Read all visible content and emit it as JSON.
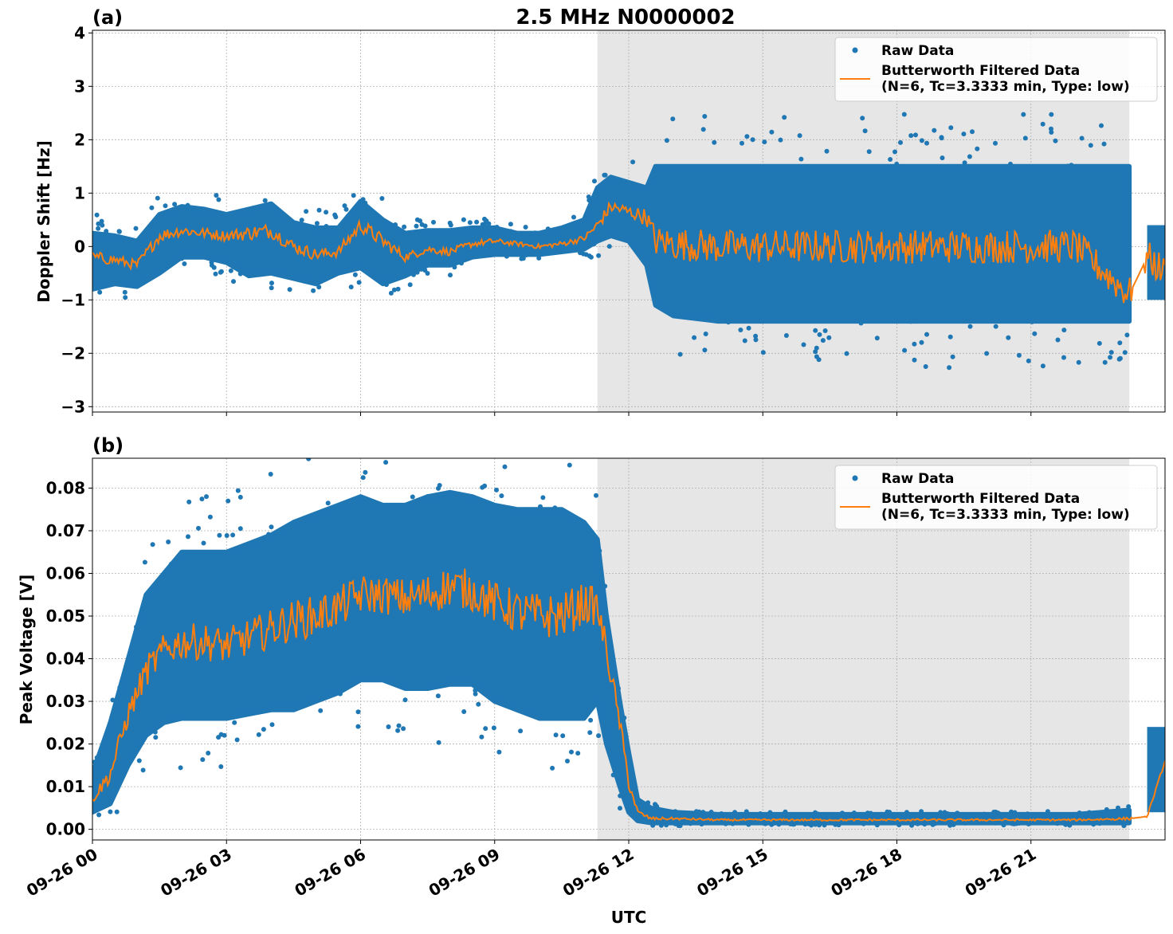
{
  "figure": {
    "title": "2.5 MHz N0000002",
    "xlabel": "UTC",
    "colors": {
      "raw": "#1f77b4",
      "filtered": "#ff7f0e",
      "shade": "#e6e6e6",
      "grid": "#b0b0b0"
    }
  },
  "chart_data": [
    {
      "type": "scatter",
      "panel_label": "(a)",
      "ylabel": "Doppler Shift [Hz]",
      "xlim_hours": [
        0,
        24
      ],
      "ylim": [
        -3.1,
        4.05
      ],
      "yticks": [
        -3,
        -2,
        -1,
        0,
        1,
        2,
        3,
        4
      ],
      "ytick_labels": [
        "−3",
        "−2",
        "−1",
        "0",
        "1",
        "2",
        "3",
        "4"
      ],
      "xticks_hours": [
        0,
        3,
        6,
        9,
        12,
        15,
        18,
        21
      ],
      "xtick_labels": [
        "09-26 00",
        "09-26 03",
        "09-26 06",
        "09-26 09",
        "09-26 12",
        "09-26 15",
        "09-26 18",
        "09-26 21"
      ],
      "shaded_region_hours": [
        11.3,
        23.2
      ],
      "grid": true,
      "legend": {
        "placement": "top-right",
        "entries": [
          {
            "label": "Raw Data",
            "marker": "dot"
          },
          {
            "label": "Butterworth Filtered Data\n(N=6, Tc=3.3333 min, Type: low)",
            "marker": "line"
          }
        ]
      },
      "series": [
        {
          "name": "Raw Data",
          "style": "band",
          "x": [
            0,
            0.5,
            1,
            1.5,
            2,
            2.5,
            3,
            3.5,
            4,
            4.5,
            5,
            5.5,
            6,
            6.5,
            7,
            7.5,
            8,
            8.5,
            9,
            9.5,
            10,
            10.5,
            11,
            11.3,
            11.6,
            12,
            12.4,
            12.6,
            13,
            14,
            15,
            16,
            17,
            18,
            19,
            20,
            21,
            22,
            23.2
          ],
          "upper": [
            0.25,
            0.2,
            0.1,
            0.6,
            0.75,
            0.7,
            0.6,
            0.7,
            0.8,
            0.45,
            0.35,
            0.35,
            0.85,
            0.5,
            0.25,
            0.3,
            0.3,
            0.35,
            0.35,
            0.25,
            0.25,
            0.35,
            0.5,
            1.1,
            1.3,
            1.2,
            1.1,
            1.5,
            1.5,
            1.5,
            1.5,
            1.5,
            1.5,
            1.5,
            1.5,
            1.5,
            1.5,
            1.5,
            1.5
          ],
          "lower": [
            -0.8,
            -0.7,
            -0.75,
            -0.5,
            -0.2,
            -0.2,
            -0.3,
            -0.55,
            -0.5,
            -0.6,
            -0.7,
            -0.5,
            -0.4,
            -0.7,
            -0.55,
            -0.35,
            -0.35,
            -0.2,
            -0.15,
            -0.15,
            -0.15,
            -0.1,
            -0.05,
            0.1,
            0.2,
            0.1,
            -0.35,
            -1.1,
            -1.3,
            -1.4,
            -1.4,
            -1.4,
            -1.4,
            -1.4,
            -1.4,
            -1.4,
            -1.4,
            -1.4,
            -1.4
          ],
          "tail": {
            "x_range": [
              23.6,
              24
            ],
            "upper": 0.4,
            "lower": -1.0
          }
        },
        {
          "name": "Butterworth Filtered Data",
          "style": "line",
          "x": [
            0,
            0.5,
            1,
            1.5,
            2,
            2.5,
            3,
            3.5,
            4,
            4.5,
            5,
            5.5,
            6,
            6.5,
            7,
            7.5,
            8,
            8.5,
            9,
            9.5,
            10,
            10.5,
            11,
            11.3,
            11.6,
            12,
            12.4,
            12.6,
            13,
            14,
            15,
            16,
            17,
            18,
            19,
            20,
            21,
            22,
            23.2,
            23.6,
            24
          ],
          "values": [
            -0.2,
            -0.25,
            -0.35,
            0.2,
            0.3,
            0.25,
            0.2,
            0.25,
            0.3,
            0.0,
            -0.15,
            -0.1,
            0.4,
            0.1,
            -0.2,
            -0.05,
            -0.1,
            0.05,
            0.1,
            0.05,
            0.0,
            0.05,
            0.15,
            0.4,
            0.75,
            0.65,
            0.55,
            0.1,
            0.05,
            0.0,
            0.0,
            0.0,
            0.0,
            0.0,
            0.0,
            0.0,
            0.0,
            0.0,
            -0.9,
            -0.2,
            -0.5
          ]
        }
      ]
    },
    {
      "type": "scatter",
      "panel_label": "(b)",
      "ylabel": "Peak Voltage [V]",
      "xlim_hours": [
        0,
        24
      ],
      "ylim": [
        -0.0025,
        0.087
      ],
      "yticks": [
        0.0,
        0.01,
        0.02,
        0.03,
        0.04,
        0.05,
        0.06,
        0.07,
        0.08
      ],
      "ytick_labels": [
        "0.00",
        "0.01",
        "0.02",
        "0.03",
        "0.04",
        "0.05",
        "0.06",
        "0.07",
        "0.08"
      ],
      "xticks_hours": [
        0,
        3,
        6,
        9,
        12,
        15,
        18,
        21
      ],
      "xtick_labels": [
        "09-26 00",
        "09-26 03",
        "09-26 06",
        "09-26 09",
        "09-26 12",
        "09-26 15",
        "09-26 18",
        "09-26 21"
      ],
      "shaded_region_hours": [
        11.3,
        23.2
      ],
      "grid": true,
      "legend": {
        "placement": "top-right",
        "entries": [
          {
            "label": "Raw Data",
            "marker": "dot"
          },
          {
            "label": "Butterworth Filtered Data\n(N=6, Tc=3.3333 min, Type: low)",
            "marker": "line"
          }
        ]
      },
      "series": [
        {
          "name": "Raw Data",
          "style": "band",
          "x": [
            0,
            0.4,
            0.8,
            1.2,
            1.6,
            2,
            2.5,
            3,
            3.5,
            4,
            4.5,
            5,
            5.5,
            6,
            6.5,
            7,
            7.5,
            8,
            8.5,
            9,
            9.5,
            10,
            10.5,
            11,
            11.3,
            11.5,
            11.8,
            12,
            12.2,
            12.5,
            13,
            14,
            15,
            16,
            17,
            18,
            19,
            20,
            21,
            22,
            23.2
          ],
          "upper": [
            0.013,
            0.025,
            0.04,
            0.055,
            0.06,
            0.065,
            0.065,
            0.065,
            0.067,
            0.069,
            0.072,
            0.074,
            0.076,
            0.078,
            0.076,
            0.076,
            0.078,
            0.079,
            0.078,
            0.076,
            0.075,
            0.075,
            0.075,
            0.072,
            0.068,
            0.05,
            0.03,
            0.018,
            0.007,
            0.005,
            0.004,
            0.0035,
            0.0035,
            0.0035,
            0.0035,
            0.0035,
            0.0035,
            0.0035,
            0.0035,
            0.0035,
            0.0045
          ],
          "lower": [
            0.004,
            0.006,
            0.015,
            0.022,
            0.025,
            0.026,
            0.026,
            0.026,
            0.027,
            0.028,
            0.028,
            0.03,
            0.032,
            0.035,
            0.035,
            0.033,
            0.033,
            0.034,
            0.034,
            0.03,
            0.028,
            0.026,
            0.026,
            0.026,
            0.03,
            0.02,
            0.01,
            0.004,
            0.002,
            0.0015,
            0.0015,
            0.0015,
            0.0015,
            0.0015,
            0.0015,
            0.0015,
            0.0015,
            0.0015,
            0.0015,
            0.0015,
            0.0015
          ],
          "tail": {
            "x_range": [
              23.6,
              24
            ],
            "upper": 0.024,
            "lower": 0.004
          }
        },
        {
          "name": "Butterworth Filtered Data",
          "style": "line",
          "x": [
            0,
            0.4,
            0.8,
            1.2,
            1.6,
            2,
            2.5,
            3,
            3.5,
            4,
            4.5,
            5,
            5.5,
            6,
            6.5,
            7,
            7.5,
            8,
            8.5,
            9,
            9.5,
            10,
            10.5,
            11,
            11.3,
            11.5,
            11.8,
            12,
            12.2,
            12.5,
            13,
            14,
            15,
            16,
            17,
            18,
            19,
            20,
            21,
            22,
            23.2,
            23.6,
            24
          ],
          "values": [
            0.007,
            0.013,
            0.027,
            0.037,
            0.042,
            0.044,
            0.044,
            0.043,
            0.045,
            0.047,
            0.049,
            0.05,
            0.052,
            0.055,
            0.055,
            0.054,
            0.055,
            0.057,
            0.056,
            0.053,
            0.051,
            0.05,
            0.05,
            0.053,
            0.052,
            0.042,
            0.025,
            0.011,
            0.004,
            0.0025,
            0.0025,
            0.0022,
            0.0022,
            0.0022,
            0.0022,
            0.0022,
            0.0022,
            0.0022,
            0.0022,
            0.0022,
            0.0025,
            0.003,
            0.016
          ]
        }
      ]
    }
  ]
}
